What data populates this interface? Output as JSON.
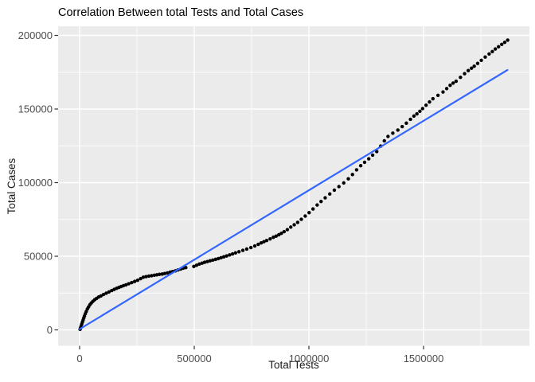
{
  "chart_data": {
    "type": "scatter",
    "title": "Correlation Between total Tests and Total Cases",
    "xlabel": "Total Tests",
    "ylabel": "Total Cases",
    "legend": "none",
    "grid": true,
    "panel_style": "ggplot-gray",
    "axis_ranges": {
      "x": [
        -93750,
        1961800
      ],
      "y": [
        -10250,
        206200
      ]
    },
    "x_ticks": [
      {
        "value": 0,
        "label": "0"
      },
      {
        "value": 500000,
        "label": "500000"
      },
      {
        "value": 1000000,
        "label": "1000000"
      },
      {
        "value": 1500000,
        "label": "1500000"
      }
    ],
    "y_ticks": [
      {
        "value": 0,
        "label": "0"
      },
      {
        "value": 50000,
        "label": "50000"
      },
      {
        "value": 100000,
        "label": "100000"
      },
      {
        "value": 150000,
        "label": "150000"
      },
      {
        "value": 200000,
        "label": "200000"
      }
    ],
    "x_minor_ticks": [
      250000,
      750000,
      1250000,
      1750000
    ],
    "y_minor_ticks": [
      25000,
      75000,
      125000,
      175000
    ],
    "colors": {
      "panel_bg": "#EBEBEB",
      "gridline": "#FFFFFF",
      "point": "#000000",
      "trend": "#3366FF",
      "tick_text": "#4D4D4D",
      "tick_mark": "#333333",
      "title_text": "#000000"
    },
    "trend_line": {
      "type": "linear",
      "x1": 0,
      "y1": 500,
      "x2": 1866000,
      "y2": 176500
    },
    "points": [
      [
        2000,
        400
      ],
      [
        4000,
        1300
      ],
      [
        6000,
        2300
      ],
      [
        9000,
        3800
      ],
      [
        12000,
        5200
      ],
      [
        15000,
        6600
      ],
      [
        18000,
        8000
      ],
      [
        21000,
        9400
      ],
      [
        25000,
        11000
      ],
      [
        29000,
        12500
      ],
      [
        34000,
        14200
      ],
      [
        39000,
        15600
      ],
      [
        45000,
        17100
      ],
      [
        51000,
        18300
      ],
      [
        58000,
        19400
      ],
      [
        66000,
        20500
      ],
      [
        74000,
        21400
      ],
      [
        83000,
        22300
      ],
      [
        93000,
        23100
      ],
      [
        104000,
        24000
      ],
      [
        116000,
        24900
      ],
      [
        128000,
        25800
      ],
      [
        140000,
        26700
      ],
      [
        151000,
        27500
      ],
      [
        162000,
        28300
      ],
      [
        172000,
        28900
      ],
      [
        181000,
        29400
      ],
      [
        191000,
        30000
      ],
      [
        202000,
        30600
      ],
      [
        214000,
        31300
      ],
      [
        227000,
        32100
      ],
      [
        240000,
        32900
      ],
      [
        253000,
        33700
      ],
      [
        266000,
        34800
      ],
      [
        278000,
        35800
      ],
      [
        290000,
        36200
      ],
      [
        302000,
        36500
      ],
      [
        314000,
        36800
      ],
      [
        326000,
        37100
      ],
      [
        337000,
        37400
      ],
      [
        348000,
        37700
      ],
      [
        360000,
        37900
      ],
      [
        371000,
        38300
      ],
      [
        383000,
        38700
      ],
      [
        395000,
        39200
      ],
      [
        406000,
        39600
      ],
      [
        418000,
        40100
      ],
      [
        429000,
        40700
      ],
      [
        441000,
        41300
      ],
      [
        452000,
        41900
      ],
      [
        463000,
        42300
      ],
      [
        498000,
        43100
      ],
      [
        510000,
        43900
      ],
      [
        522000,
        44700
      ],
      [
        534000,
        45300
      ],
      [
        545000,
        45900
      ],
      [
        557000,
        46400
      ],
      [
        569000,
        46900
      ],
      [
        581000,
        47400
      ],
      [
        593000,
        47900
      ],
      [
        605000,
        48400
      ],
      [
        617000,
        49000
      ],
      [
        629000,
        49600
      ],
      [
        641000,
        50200
      ],
      [
        654000,
        50900
      ],
      [
        667000,
        51600
      ],
      [
        680000,
        52300
      ],
      [
        695000,
        53100
      ],
      [
        712000,
        54000
      ],
      [
        729000,
        54900
      ],
      [
        747000,
        55900
      ],
      [
        764000,
        57000
      ],
      [
        779000,
        58100
      ],
      [
        792000,
        59100
      ],
      [
        804000,
        59900
      ],
      [
        816000,
        60700
      ],
      [
        831000,
        61800
      ],
      [
        845000,
        62900
      ],
      [
        857000,
        63700
      ],
      [
        869000,
        64600
      ],
      [
        880000,
        65600
      ],
      [
        892000,
        66700
      ],
      [
        906000,
        68100
      ],
      [
        921000,
        69800
      ],
      [
        936000,
        71400
      ],
      [
        951000,
        73000
      ],
      [
        967000,
        75100
      ],
      [
        984000,
        77300
      ],
      [
        1001000,
        79600
      ],
      [
        1018000,
        82100
      ],
      [
        1036000,
        84800
      ],
      [
        1053000,
        87200
      ],
      [
        1071000,
        89700
      ],
      [
        1091000,
        92300
      ],
      [
        1111000,
        94900
      ],
      [
        1131000,
        97300
      ],
      [
        1152000,
        99800
      ],
      [
        1172000,
        102600
      ],
      [
        1190000,
        105500
      ],
      [
        1208000,
        108700
      ],
      [
        1226000,
        111500
      ],
      [
        1243000,
        113800
      ],
      [
        1261000,
        116200
      ],
      [
        1278000,
        118700
      ],
      [
        1296000,
        121100
      ],
      [
        1313000,
        124800
      ],
      [
        1329000,
        128400
      ],
      [
        1345000,
        131400
      ],
      [
        1366000,
        133600
      ],
      [
        1388000,
        135700
      ],
      [
        1407000,
        138100
      ],
      [
        1425000,
        140400
      ],
      [
        1443000,
        143000
      ],
      [
        1458000,
        145200
      ],
      [
        1471000,
        146700
      ],
      [
        1484000,
        148500
      ],
      [
        1496000,
        150300
      ],
      [
        1511000,
        152600
      ],
      [
        1526000,
        154800
      ],
      [
        1541000,
        157000
      ],
      [
        1563000,
        159300
      ],
      [
        1585000,
        161600
      ],
      [
        1601000,
        163900
      ],
      [
        1616000,
        166100
      ],
      [
        1629000,
        167600
      ],
      [
        1642000,
        168900
      ],
      [
        1661000,
        171500
      ],
      [
        1679000,
        174000
      ],
      [
        1695000,
        176100
      ],
      [
        1709000,
        177700
      ],
      [
        1721000,
        179100
      ],
      [
        1736000,
        181000
      ],
      [
        1752000,
        183100
      ],
      [
        1769000,
        185300
      ],
      [
        1786000,
        187400
      ],
      [
        1800000,
        189000
      ],
      [
        1813000,
        190800
      ],
      [
        1827000,
        192300
      ],
      [
        1841000,
        193900
      ],
      [
        1854000,
        195300
      ],
      [
        1867000,
        196800
      ]
    ]
  }
}
